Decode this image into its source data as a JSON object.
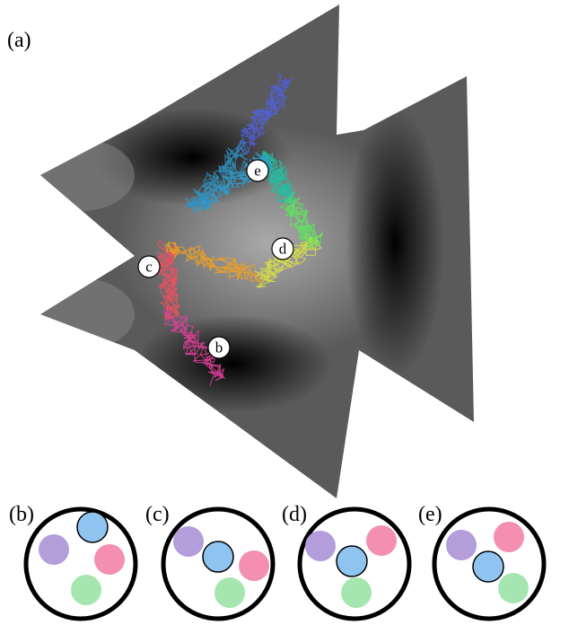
{
  "panels": {
    "a": "(a)",
    "b": "(b)",
    "c": "(c)",
    "d": "(d)",
    "e": "(e)"
  },
  "markers": [
    "b",
    "c",
    "d",
    "e"
  ]
}
